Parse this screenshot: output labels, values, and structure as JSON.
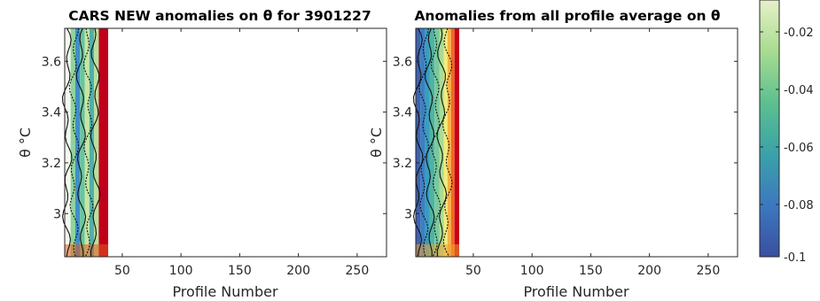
{
  "title_left": "CARS NEW anomalies on θ for 3901227",
  "title_right": "Anomalies from all profile average on θ",
  "colorbar": {
    "ticks": [
      "-0.1",
      "-0.08",
      "-0.06",
      "-0.04",
      "-0.02"
    ],
    "stops": [
      "#3a4fa0",
      "#3c78c0",
      "#3aa2a8",
      "#5cc090",
      "#a8dc90",
      "#e6f0c8"
    ]
  },
  "chart_data": [
    {
      "type": "heatmap",
      "title": "CARS NEW anomalies on θ for 3901227",
      "xlabel": "Profile Number",
      "ylabel": "θ °C",
      "xlim": [
        1,
        275
      ],
      "ylim": [
        2.83,
        3.73
      ],
      "xticks": [
        "50",
        "100",
        "150",
        "200",
        "250"
      ],
      "xtick_values": [
        50,
        100,
        150,
        200,
        250
      ],
      "yticks": [
        "3",
        "3.2",
        "3.4",
        "3.6"
      ],
      "ytick_values": [
        3.0,
        3.2,
        3.4,
        3.6
      ],
      "data_extent_profiles": [
        1,
        38
      ],
      "columns": [
        {
          "x0": 1,
          "x1": 6,
          "color": "#f4f8f0"
        },
        {
          "x0": 6,
          "x1": 10,
          "color": "#8fd49a"
        },
        {
          "x0": 10,
          "x1": 14,
          "color": "#3f8fc8"
        },
        {
          "x0": 14,
          "x1": 18,
          "color": "#67c5a0"
        },
        {
          "x0": 18,
          "x1": 22,
          "color": "#c6e6a4"
        },
        {
          "x0": 22,
          "x1": 26,
          "color": "#4fb0a8"
        },
        {
          "x0": 26,
          "x1": 30,
          "color": "#b9e09c"
        },
        {
          "x0": 30,
          "x1": 38,
          "color": "#c0001a"
        }
      ]
    },
    {
      "type": "heatmap",
      "title": "Anomalies from all profile average on θ",
      "xlabel": "Profile Number",
      "ylabel": "θ °C",
      "xlim": [
        1,
        275
      ],
      "ylim": [
        2.83,
        3.73
      ],
      "xticks": [
        "50",
        "100",
        "150",
        "200",
        "250"
      ],
      "xtick_values": [
        50,
        100,
        150,
        200,
        250
      ],
      "yticks": [
        "3",
        "3.2",
        "3.4",
        "3.6"
      ],
      "ytick_values": [
        3.0,
        3.2,
        3.4,
        3.6
      ],
      "data_extent_profiles": [
        1,
        38
      ],
      "columns": [
        {
          "x0": 1,
          "x1": 5,
          "color": "#3f62b0"
        },
        {
          "x0": 5,
          "x1": 9,
          "color": "#3b7fc2"
        },
        {
          "x0": 9,
          "x1": 13,
          "color": "#3a9cc0"
        },
        {
          "x0": 13,
          "x1": 17,
          "color": "#4fb3a4"
        },
        {
          "x0": 17,
          "x1": 21,
          "color": "#79c99a"
        },
        {
          "x0": 21,
          "x1": 25,
          "color": "#a9dc94"
        },
        {
          "x0": 25,
          "x1": 28,
          "color": "#f2ec7a"
        },
        {
          "x0": 28,
          "x1": 31,
          "color": "#f7b340"
        },
        {
          "x0": 31,
          "x1": 34,
          "color": "#ee6a24"
        },
        {
          "x0": 34,
          "x1": 38,
          "color": "#c8001a"
        }
      ]
    }
  ]
}
